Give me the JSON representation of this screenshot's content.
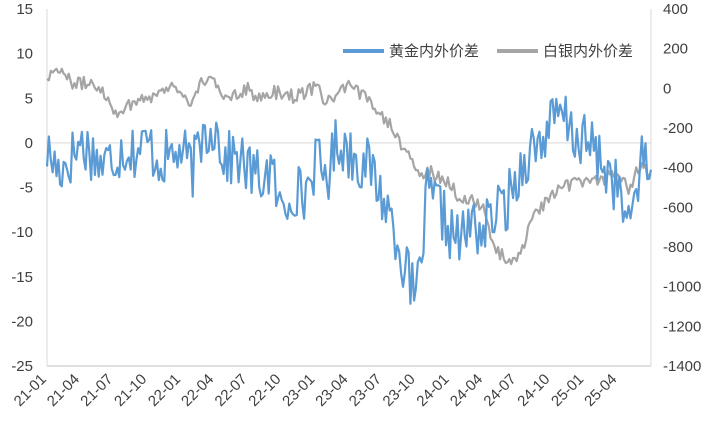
{
  "chart_data": {
    "type": "line",
    "title": "",
    "xlabel": "",
    "ylabel": "",
    "x_ticks": [
      "21-01",
      "21-04",
      "21-07",
      "21-10",
      "22-01",
      "22-04",
      "22-07",
      "22-10",
      "23-01",
      "23-04",
      "23-07",
      "23-10",
      "24-01",
      "24-04",
      "24-07",
      "24-10",
      "25-01",
      "25-04"
    ],
    "y_left": {
      "min": -25,
      "max": 15,
      "ticks": [
        "15",
        "10",
        "5",
        "0",
        "-5",
        "-10",
        "-15",
        "-20",
        "-25"
      ]
    },
    "y_right": {
      "min": -1400,
      "max": 400,
      "ticks": [
        "400",
        "200",
        "0",
        "-200",
        "-400",
        "-600",
        "-800",
        "-1000",
        "-1200",
        "-1400"
      ]
    },
    "legend_position": "top-right",
    "grid": false,
    "series": [
      {
        "name": "黄金内外价差",
        "axis": "left",
        "color": "#5b9bd5",
        "x": [
          "2021-01-01",
          "2021-02-01",
          "2021-03-01",
          "2021-04-01",
          "2021-05-01",
          "2021-06-01",
          "2021-07-01",
          "2021-08-01",
          "2021-09-01",
          "2021-10-01",
          "2021-11-01",
          "2021-12-01",
          "2022-01-01",
          "2022-02-01",
          "2022-03-01",
          "2022-04-01",
          "2022-05-01",
          "2022-06-01",
          "2022-07-01",
          "2022-08-01",
          "2022-09-01",
          "2022-10-01",
          "2022-11-01",
          "2022-12-01",
          "2023-01-01",
          "2023-02-01",
          "2023-03-01",
          "2023-04-01",
          "2023-05-01",
          "2023-06-01",
          "2023-07-01",
          "2023-08-01",
          "2023-09-01",
          "2023-10-01",
          "2023-11-01",
          "2023-12-01",
          "2024-01-01",
          "2024-02-01",
          "2024-03-01",
          "2024-04-01",
          "2024-05-01",
          "2024-06-01",
          "2024-07-01",
          "2024-08-01",
          "2024-09-01",
          "2024-10-01",
          "2024-11-01",
          "2024-12-01",
          "2025-01-01",
          "2025-02-01",
          "2025-03-01",
          "2025-04-01",
          "2025-05-01",
          "2025-06-01",
          "2025-07-01"
        ],
        "values": [
          -1.0,
          -3.0,
          -2.0,
          0.0,
          -1.0,
          -2.5,
          -1.5,
          -0.5,
          -1.0,
          0.0,
          -2.0,
          -1.5,
          -1.0,
          -3.0,
          1.0,
          2.0,
          -2.0,
          -1.5,
          -3.0,
          -4.0,
          -3.0,
          -8.0,
          -5.0,
          -6.0,
          -2.0,
          -4.0,
          0.5,
          -1.0,
          -2.0,
          -3.0,
          -6.0,
          -9.0,
          -14.0,
          -18.0,
          -6.0,
          -7.0,
          -10.0,
          -11.0,
          -9.0,
          -10.0,
          -8.0,
          -7.0,
          -4.0,
          -1.0,
          0.0,
          2.0,
          3.0,
          1.0,
          0.0,
          -1.0,
          -3.0,
          -5.0,
          -10.0,
          -2.0,
          -3.0
        ]
      },
      {
        "name": "白银内外价差",
        "axis": "right",
        "color": "#a5a5a5",
        "x": [
          "2021-01-01",
          "2021-02-01",
          "2021-03-01",
          "2021-04-01",
          "2021-05-01",
          "2021-06-01",
          "2021-07-01",
          "2021-08-01",
          "2021-09-01",
          "2021-10-01",
          "2021-11-01",
          "2021-12-01",
          "2022-01-01",
          "2022-02-01",
          "2022-03-01",
          "2022-04-01",
          "2022-05-01",
          "2022-06-01",
          "2022-07-01",
          "2022-08-01",
          "2022-09-01",
          "2022-10-01",
          "2022-11-01",
          "2022-12-01",
          "2023-01-01",
          "2023-02-01",
          "2023-03-01",
          "2023-04-01",
          "2023-05-01",
          "2023-06-01",
          "2023-07-01",
          "2023-08-01",
          "2023-09-01",
          "2023-10-01",
          "2023-11-01",
          "2023-12-01",
          "2024-01-01",
          "2024-02-01",
          "2024-03-01",
          "2024-04-01",
          "2024-05-01",
          "2024-06-01",
          "2024-07-01",
          "2024-08-01",
          "2024-09-01",
          "2024-10-01",
          "2024-11-01",
          "2024-12-01",
          "2025-01-01",
          "2025-02-01",
          "2025-03-01",
          "2025-04-01",
          "2025-05-01",
          "2025-06-01",
          "2025-07-01"
        ],
        "values": [
          60,
          110,
          40,
          20,
          30,
          0,
          -120,
          -100,
          -60,
          -40,
          -30,
          20,
          -20,
          -80,
          50,
          20,
          -40,
          -20,
          0,
          -60,
          -20,
          -20,
          -40,
          -20,
          0,
          -60,
          -40,
          10,
          -30,
          -60,
          -130,
          -200,
          -310,
          -430,
          -420,
          -440,
          -480,
          -560,
          -560,
          -620,
          -800,
          -860,
          -880,
          -720,
          -600,
          -560,
          -500,
          -480,
          -460,
          -460,
          -450,
          -420,
          -500,
          -400,
          -440
        ]
      }
    ]
  }
}
